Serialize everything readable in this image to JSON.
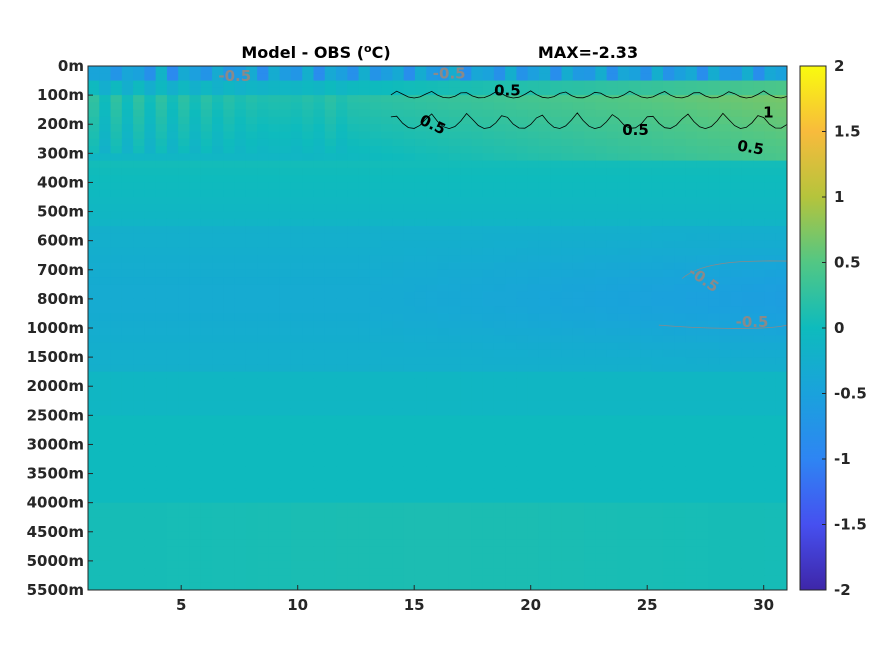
{
  "chart_data": {
    "type": "heatmap",
    "title_left": "Model - OBS (",
    "title_sup": "o",
    "title_left_end": "C)",
    "title_right": "MAX=-2.33",
    "y_tick_labels": [
      "0m",
      "100m",
      "200m",
      "300m",
      "400m",
      "500m",
      "600m",
      "700m",
      "800m",
      "1000m",
      "1500m",
      "2000m",
      "2500m",
      "3000m",
      "3500m",
      "4000m",
      "4500m",
      "5000m",
      "5500m"
    ],
    "x_ticks": [
      5,
      10,
      15,
      20,
      25,
      30
    ],
    "x_tick_labels": [
      "5",
      "10",
      "15",
      "20",
      "25",
      "30"
    ],
    "xlim": [
      1,
      31
    ],
    "colorbar": {
      "range": [
        -2,
        2
      ],
      "ticks": [
        -2,
        -1.5,
        -1,
        -0.5,
        0,
        0.5,
        1,
        1.5,
        2
      ],
      "tick_labels": [
        "-2",
        "-1.5",
        "-1",
        "-0.5",
        "0",
        "0.5",
        "1",
        "1.5",
        "2"
      ],
      "colormap": "parula"
    },
    "contour_labels": [
      {
        "text": "0.5",
        "x": 19,
        "depth_index": 0.85,
        "color": "#000000",
        "rotate": 0
      },
      {
        "text": "0.5",
        "x": 15.7,
        "depth_index": 2.0,
        "color": "#000000",
        "rotate": 25
      },
      {
        "text": "0.5",
        "x": 24.5,
        "depth_index": 2.2,
        "color": "#000000",
        "rotate": 0
      },
      {
        "text": "0.5",
        "x": 29.4,
        "depth_index": 2.8,
        "color": "#000000",
        "rotate": 10
      },
      {
        "text": "1",
        "x": 30.2,
        "depth_index": 1.6,
        "color": "#000000",
        "rotate": 0
      },
      {
        "text": "-0.5",
        "x": 7.3,
        "depth_index": 0.35,
        "color": "#8a8a8a",
        "rotate": 0
      },
      {
        "text": "-0.5",
        "x": 16.5,
        "depth_index": 0.25,
        "color": "#8a8a8a",
        "rotate": 0
      },
      {
        "text": "-0.5",
        "x": 27.3,
        "depth_index": 7.3,
        "color": "#8a8a8a",
        "rotate": 35
      },
      {
        "text": "-0.5",
        "x": 29.5,
        "depth_index": 8.8,
        "color": "#8a8a8a",
        "rotate": 0
      }
    ]
  }
}
